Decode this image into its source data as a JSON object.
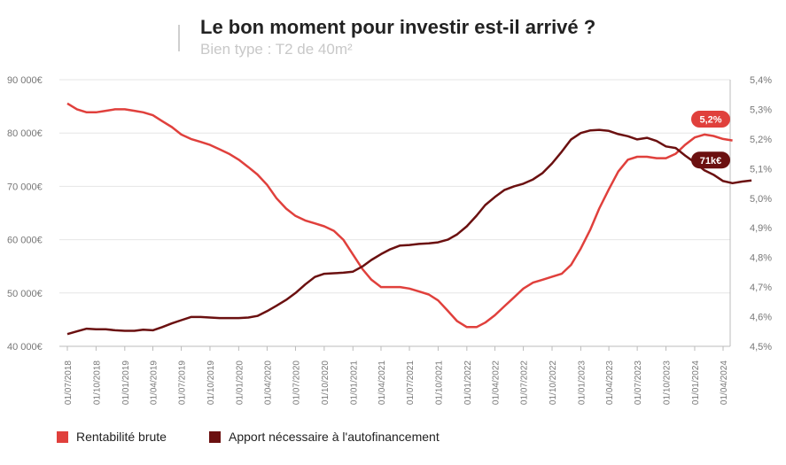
{
  "header": {
    "title": "Le bon moment pour investir est-il arrivé ?",
    "subtitle": "Bien type : T2 de 40m²"
  },
  "colors": {
    "rentabilite": "#e0403c",
    "apport": "#6b1010",
    "grid": "#e6e6e6",
    "axis": "#bbbbbb"
  },
  "chart_data": {
    "type": "line",
    "x_tick_labels": [
      "01/07/2018",
      "01/10/2018",
      "01/01/2019",
      "01/04/2019",
      "01/07/2019",
      "01/10/2019",
      "01/01/2020",
      "01/04/2020",
      "01/07/2020",
      "01/10/2020",
      "01/01/2021",
      "01/04/2021",
      "01/07/2021",
      "01/10/2021",
      "01/01/2022",
      "01/04/2022",
      "01/07/2022",
      "01/10/2022",
      "01/01/2023",
      "01/04/2023",
      "01/07/2023",
      "01/10/2023",
      "01/01/2024",
      "01/04/2024"
    ],
    "y_left": {
      "ylim": [
        40000,
        90000
      ],
      "ticks": [
        40000,
        50000,
        60000,
        70000,
        80000,
        90000
      ],
      "tick_labels": [
        "40 000€",
        "50 000€",
        "60 000€",
        "70 000€",
        "80 000€",
        "90 000€"
      ]
    },
    "y_right": {
      "ylim": [
        4.5,
        5.4
      ],
      "ticks": [
        4.5,
        4.6,
        4.7,
        4.8,
        4.9,
        5.0,
        5.1,
        5.2,
        5.3,
        5.4
      ],
      "tick_labels": [
        "4,5%",
        "4,6%",
        "4,7%",
        "4,8%",
        "4,9%",
        "5,0%",
        "5,1%",
        "5,2%",
        "5,3%",
        "5,4%"
      ]
    },
    "grid": "horizontal",
    "legend_position": "bottom-left",
    "series": [
      {
        "name": "Rentabilité brute",
        "axis": "right",
        "end_label": "5,2%",
        "points": [
          [
            "2018-07-01",
            5.32
          ],
          [
            "2018-08-01",
            5.3
          ],
          [
            "2018-09-01",
            5.29
          ],
          [
            "2018-10-01",
            5.29
          ],
          [
            "2018-11-01",
            5.295
          ],
          [
            "2018-12-01",
            5.3
          ],
          [
            "2019-01-01",
            5.3
          ],
          [
            "2019-02-01",
            5.295
          ],
          [
            "2019-03-01",
            5.29
          ],
          [
            "2019-04-01",
            5.28
          ],
          [
            "2019-05-01",
            5.26
          ],
          [
            "2019-06-01",
            5.24
          ],
          [
            "2019-07-01",
            5.215
          ],
          [
            "2019-08-01",
            5.2
          ],
          [
            "2019-09-01",
            5.19
          ],
          [
            "2019-10-01",
            5.18
          ],
          [
            "2019-11-01",
            5.165
          ],
          [
            "2019-12-01",
            5.15
          ],
          [
            "2020-01-01",
            5.13
          ],
          [
            "2020-02-01",
            5.105
          ],
          [
            "2020-03-01",
            5.08
          ],
          [
            "2020-04-01",
            5.045
          ],
          [
            "2020-05-01",
            5.0
          ],
          [
            "2020-06-01",
            4.965
          ],
          [
            "2020-07-01",
            4.94
          ],
          [
            "2020-08-01",
            4.925
          ],
          [
            "2020-09-01",
            4.915
          ],
          [
            "2020-10-01",
            4.905
          ],
          [
            "2020-11-01",
            4.89
          ],
          [
            "2020-12-01",
            4.86
          ],
          [
            "2021-01-01",
            4.81
          ],
          [
            "2021-02-01",
            4.76
          ],
          [
            "2021-03-01",
            4.725
          ],
          [
            "2021-04-01",
            4.7
          ],
          [
            "2021-05-01",
            4.7
          ],
          [
            "2021-06-01",
            4.7
          ],
          [
            "2021-07-01",
            4.695
          ],
          [
            "2021-08-01",
            4.685
          ],
          [
            "2021-09-01",
            4.675
          ],
          [
            "2021-10-01",
            4.655
          ],
          [
            "2021-11-01",
            4.62
          ],
          [
            "2021-12-01",
            4.585
          ],
          [
            "2022-01-01",
            4.565
          ],
          [
            "2022-02-01",
            4.565
          ],
          [
            "2022-03-01",
            4.58
          ],
          [
            "2022-04-01",
            4.605
          ],
          [
            "2022-05-01",
            4.635
          ],
          [
            "2022-06-01",
            4.665
          ],
          [
            "2022-07-01",
            4.695
          ],
          [
            "2022-08-01",
            4.715
          ],
          [
            "2022-09-01",
            4.725
          ],
          [
            "2022-10-01",
            4.735
          ],
          [
            "2022-11-01",
            4.745
          ],
          [
            "2022-12-01",
            4.775
          ],
          [
            "2023-01-01",
            4.83
          ],
          [
            "2023-02-01",
            4.895
          ],
          [
            "2023-03-01",
            4.965
          ],
          [
            "2023-04-01",
            5.03
          ],
          [
            "2023-05-01",
            5.09
          ],
          [
            "2023-06-01",
            5.13
          ],
          [
            "2023-07-01",
            5.14
          ],
          [
            "2023-08-01",
            5.14
          ],
          [
            "2023-09-01",
            5.135
          ],
          [
            "2023-10-01",
            5.135
          ],
          [
            "2023-11-01",
            5.15
          ],
          [
            "2023-12-01",
            5.18
          ],
          [
            "2024-01-01",
            5.205
          ],
          [
            "2024-02-01",
            5.215
          ],
          [
            "2024-03-01",
            5.21
          ],
          [
            "2024-04-01",
            5.2
          ],
          [
            "2024-05-01",
            5.195
          ]
        ]
      },
      {
        "name": "Apport nécessaire à l'autofinancement",
        "axis": "left",
        "end_label": "71k€",
        "points": [
          [
            "2018-07-01",
            42300
          ],
          [
            "2018-08-01",
            42800
          ],
          [
            "2018-09-01",
            43300
          ],
          [
            "2018-10-01",
            43200
          ],
          [
            "2018-11-01",
            43200
          ],
          [
            "2018-12-01",
            43000
          ],
          [
            "2019-01-01",
            42900
          ],
          [
            "2019-02-01",
            42900
          ],
          [
            "2019-03-01",
            43100
          ],
          [
            "2019-04-01",
            43000
          ],
          [
            "2019-05-01",
            43600
          ],
          [
            "2019-06-01",
            44300
          ],
          [
            "2019-07-01",
            44900
          ],
          [
            "2019-08-01",
            45500
          ],
          [
            "2019-09-01",
            45500
          ],
          [
            "2019-10-01",
            45400
          ],
          [
            "2019-11-01",
            45300
          ],
          [
            "2019-12-01",
            45300
          ],
          [
            "2020-01-01",
            45300
          ],
          [
            "2020-02-01",
            45400
          ],
          [
            "2020-03-01",
            45700
          ],
          [
            "2020-04-01",
            46600
          ],
          [
            "2020-05-01",
            47600
          ],
          [
            "2020-06-01",
            48700
          ],
          [
            "2020-07-01",
            50000
          ],
          [
            "2020-08-01",
            51600
          ],
          [
            "2020-09-01",
            53000
          ],
          [
            "2020-10-01",
            53600
          ],
          [
            "2020-11-01",
            53700
          ],
          [
            "2020-12-01",
            53800
          ],
          [
            "2021-01-01",
            54000
          ],
          [
            "2021-02-01",
            55000
          ],
          [
            "2021-03-01",
            56200
          ],
          [
            "2021-04-01",
            57300
          ],
          [
            "2021-05-01",
            58200
          ],
          [
            "2021-06-01",
            58900
          ],
          [
            "2021-07-01",
            59000
          ],
          [
            "2021-08-01",
            59200
          ],
          [
            "2021-09-01",
            59300
          ],
          [
            "2021-10-01",
            59500
          ],
          [
            "2021-11-01",
            60000
          ],
          [
            "2021-12-01",
            61000
          ],
          [
            "2022-01-01",
            62500
          ],
          [
            "2022-02-01",
            64500
          ],
          [
            "2022-03-01",
            66500
          ],
          [
            "2022-04-01",
            68000
          ],
          [
            "2022-05-01",
            69300
          ],
          [
            "2022-06-01",
            70000
          ],
          [
            "2022-07-01",
            70500
          ],
          [
            "2022-08-01",
            71300
          ],
          [
            "2022-09-01",
            72500
          ],
          [
            "2022-10-01",
            74300
          ],
          [
            "2022-11-01",
            76500
          ],
          [
            "2022-12-01",
            78800
          ],
          [
            "2023-01-01",
            80000
          ],
          [
            "2023-02-01",
            80500
          ],
          [
            "2023-03-01",
            80600
          ],
          [
            "2023-04-01",
            80400
          ],
          [
            "2023-05-01",
            79800
          ],
          [
            "2023-06-01",
            79400
          ],
          [
            "2023-07-01",
            78800
          ],
          [
            "2023-08-01",
            79100
          ],
          [
            "2023-09-01",
            78500
          ],
          [
            "2023-10-01",
            77500
          ],
          [
            "2023-11-01",
            77200
          ],
          [
            "2023-12-01",
            75800
          ],
          [
            "2024-01-01",
            74500
          ],
          [
            "2024-02-01",
            73000
          ],
          [
            "2024-03-01",
            72200
          ],
          [
            "2024-04-01",
            71000
          ],
          [
            "2024-05-01",
            70600
          ],
          [
            "2024-06-01",
            70900
          ],
          [
            "2024-07-01",
            71100
          ]
        ]
      }
    ]
  }
}
